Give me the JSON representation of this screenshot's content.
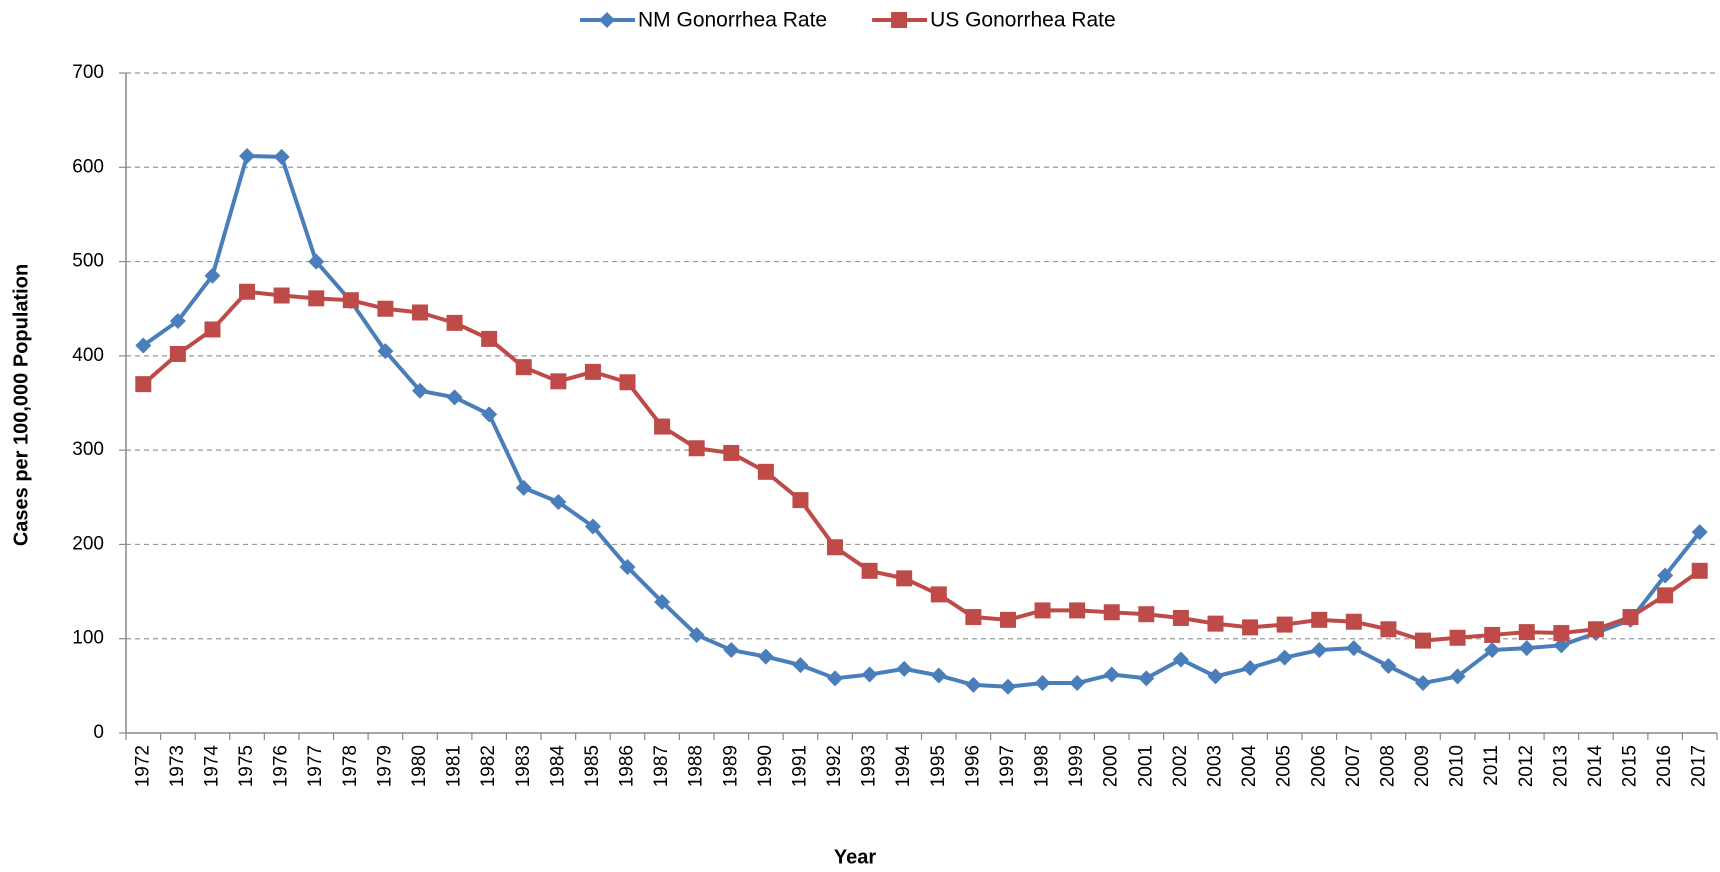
{
  "chart_data": {
    "type": "line",
    "x_label": "Year",
    "y_label": "Cases per 100,000 Population",
    "categories": [
      "1972",
      "1973",
      "1974",
      "1975",
      "1976",
      "1977",
      "1978",
      "1979",
      "1980",
      "1981",
      "1982",
      "1983",
      "1984",
      "1985",
      "1986",
      "1987",
      "1988",
      "1989",
      "1990",
      "1991",
      "1992",
      "1993",
      "1994",
      "1995",
      "1996",
      "1997",
      "1998",
      "1999",
      "2000",
      "2001",
      "2002",
      "2003",
      "2004",
      "2005",
      "2006",
      "2007",
      "2008",
      "2009",
      "2010",
      "2011",
      "2012",
      "2013",
      "2014",
      "2015",
      "2016",
      "2017"
    ],
    "series": [
      {
        "name": "NM Gonorrhea Rate",
        "color": "#4a7ebb",
        "marker": "diamond",
        "values": [
          411,
          437,
          485,
          612,
          611,
          500,
          458,
          405,
          363,
          356,
          338,
          260,
          245,
          219,
          176,
          139,
          104,
          88,
          81,
          72,
          58,
          62,
          68,
          61,
          51,
          49,
          53,
          53,
          62,
          58,
          78,
          60,
          69,
          80,
          88,
          90,
          71,
          53,
          60,
          88,
          90,
          93,
          106,
          120,
          167,
          213
        ]
      },
      {
        "name": "US Gonorrhea Rate",
        "color": "#be4b48",
        "marker": "square",
        "values": [
          370,
          402,
          428,
          468,
          464,
          461,
          459,
          450,
          446,
          435,
          418,
          388,
          373,
          383,
          372,
          325,
          302,
          297,
          277,
          247,
          197,
          172,
          164,
          147,
          123,
          120,
          130,
          130,
          128,
          126,
          122,
          116,
          112,
          115,
          120,
          118,
          110,
          98,
          101,
          104,
          107,
          106,
          110,
          123,
          146,
          172
        ]
      }
    ],
    "ylim": [
      0,
      700
    ],
    "yticks": [
      0,
      100,
      200,
      300,
      400,
      500,
      600,
      700
    ],
    "grid": true,
    "legend": "top"
  }
}
